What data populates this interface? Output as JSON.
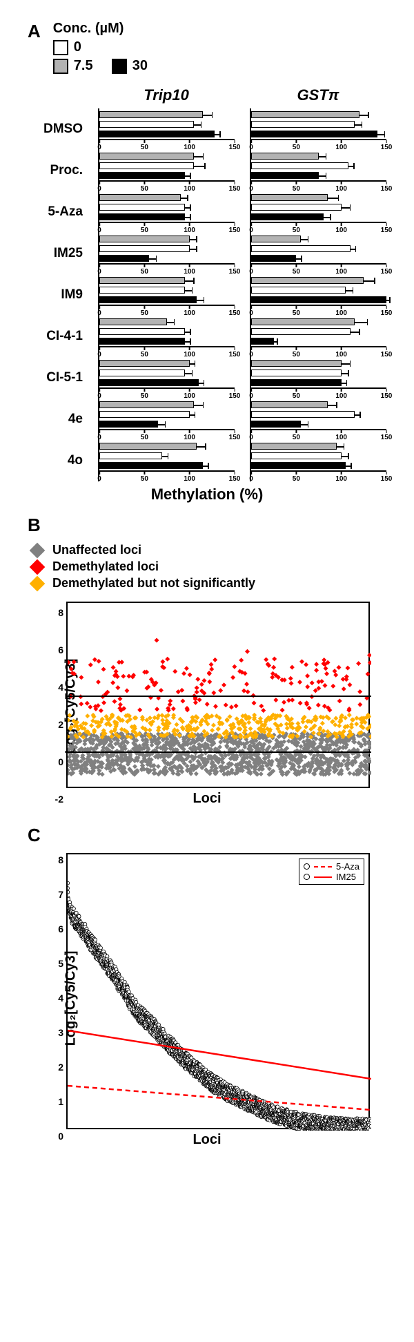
{
  "panelA": {
    "label": "A",
    "legend_title": "Conc. (µM)",
    "conc_levels": [
      {
        "label": "0",
        "color": "#ffffff"
      },
      {
        "label": "7.5",
        "color": "#b3b3b3"
      },
      {
        "label": "30",
        "color": "#000000"
      }
    ],
    "columns": [
      "Trip10",
      "GSTπ"
    ],
    "x_axis_title": "Methylation (%)",
    "xlim": [
      0,
      150
    ],
    "xticks": [
      0,
      50,
      100,
      150
    ],
    "tick_fontsize": 10,
    "err_default": 8,
    "rows": [
      {
        "name": "DMSO",
        "Trip10": {
          "v": [
            105,
            115,
            128
          ],
          "e": [
            8,
            10,
            6
          ]
        },
        "GSTπ": {
          "v": [
            115,
            120,
            140
          ],
          "e": [
            8,
            10,
            8
          ]
        }
      },
      {
        "name": "Proc.",
        "Trip10": {
          "v": [
            105,
            105,
            95
          ],
          "e": [
            12,
            10,
            6
          ]
        },
        "GSTπ": {
          "v": [
            108,
            75,
            75
          ],
          "e": [
            6,
            8,
            8
          ]
        }
      },
      {
        "name": "5-Aza",
        "Trip10": {
          "v": [
            95,
            90,
            95
          ],
          "e": [
            6,
            8,
            6
          ]
        },
        "GSTπ": {
          "v": [
            100,
            85,
            80
          ],
          "e": [
            10,
            12,
            8
          ]
        }
      },
      {
        "name": "IM25",
        "Trip10": {
          "v": [
            100,
            100,
            55
          ],
          "e": [
            8,
            8,
            8
          ]
        },
        "GSTπ": {
          "v": [
            110,
            55,
            50
          ],
          "e": [
            6,
            8,
            6
          ]
        }
      },
      {
        "name": "IM9",
        "Trip10": {
          "v": [
            95,
            95,
            108
          ],
          "e": [
            8,
            10,
            8
          ]
        },
        "GSTπ": {
          "v": [
            105,
            125,
            150
          ],
          "e": [
            8,
            12,
            4
          ]
        }
      },
      {
        "name": "CI-4-1",
        "Trip10": {
          "v": [
            95,
            75,
            95
          ],
          "e": [
            6,
            8,
            6
          ]
        },
        "GSTπ": {
          "v": [
            110,
            115,
            25
          ],
          "e": [
            10,
            14,
            4
          ]
        }
      },
      {
        "name": "CI-5-1",
        "Trip10": {
          "v": [
            95,
            100,
            110
          ],
          "e": [
            8,
            6,
            6
          ]
        },
        "GSTπ": {
          "v": [
            100,
            100,
            100
          ],
          "e": [
            8,
            10,
            6
          ]
        }
      },
      {
        "name": "4e",
        "Trip10": {
          "v": [
            100,
            105,
            65
          ],
          "e": [
            6,
            10,
            8
          ]
        },
        "GSTπ": {
          "v": [
            115,
            85,
            55
          ],
          "e": [
            6,
            10,
            8
          ]
        }
      },
      {
        "name": "4o",
        "Trip10": {
          "v": [
            70,
            108,
            115
          ],
          "e": [
            6,
            10,
            6
          ]
        },
        "GSTπ": {
          "v": [
            100,
            95,
            105
          ],
          "e": [
            8,
            8,
            6
          ]
        }
      }
    ]
  },
  "panelB": {
    "label": "B",
    "legend": [
      {
        "label": "Unaffected loci",
        "color": "#808080"
      },
      {
        "label": "Demethylated loci",
        "color": "#ff0000"
      },
      {
        "label": "Demethylated but not significantly",
        "color": "#ffb000"
      }
    ],
    "xlabel": "Loci",
    "ylabel": "Log₂[Cy5/Cy3]",
    "ylim": [
      -2,
      8
    ],
    "yticks": [
      -2,
      0,
      2,
      4,
      6,
      8
    ],
    "threshold_line": {
      "y": 3,
      "color": "#000000",
      "width": 2
    },
    "zero_line": {
      "y": 0,
      "color": "#000000",
      "width": 2
    },
    "points": {
      "n_gray": 1400,
      "gray_yrange": [
        -1.2,
        1.0
      ],
      "gray_color": "#808080",
      "n_orange": 380,
      "orange_yrange": [
        0.8,
        2.0
      ],
      "orange_color": "#ffb000",
      "n_red": 180,
      "red_yrange": [
        2.2,
        5.0
      ],
      "red_outliers": [
        5.4,
        6.0,
        5.2
      ],
      "red_color": "#ff0000"
    },
    "marker_size": 4
  },
  "panelC": {
    "label": "C",
    "xlabel": "Loci",
    "ylabel": "Log₂[Cy5/Cy3]",
    "ylim": [
      0,
      8
    ],
    "yticks": [
      0,
      1,
      2,
      3,
      4,
      5,
      6,
      7,
      8
    ],
    "legend": [
      {
        "label": "5-Aza",
        "color": "#ff0000",
        "style": "dashed"
      },
      {
        "label": "IM25",
        "color": "#ff0000",
        "style": "solid"
      }
    ],
    "lines": [
      {
        "name": "IM25",
        "color": "#ff0000",
        "style": "solid",
        "width": 2.5,
        "y_start": 2.9,
        "y_end": 1.5
      },
      {
        "name": "5-Aza",
        "color": "#ff0000",
        "style": "dashed",
        "width": 2.5,
        "y_start": 1.3,
        "y_end": 0.6
      }
    ],
    "points": {
      "n": 2600,
      "yrange": [
        0.1,
        6.5
      ],
      "outliers": [
        6.8,
        7.0,
        6.9,
        7.2,
        6.7
      ],
      "color": "#ffffff",
      "edge": "#000000",
      "marker_size": 5
    }
  }
}
